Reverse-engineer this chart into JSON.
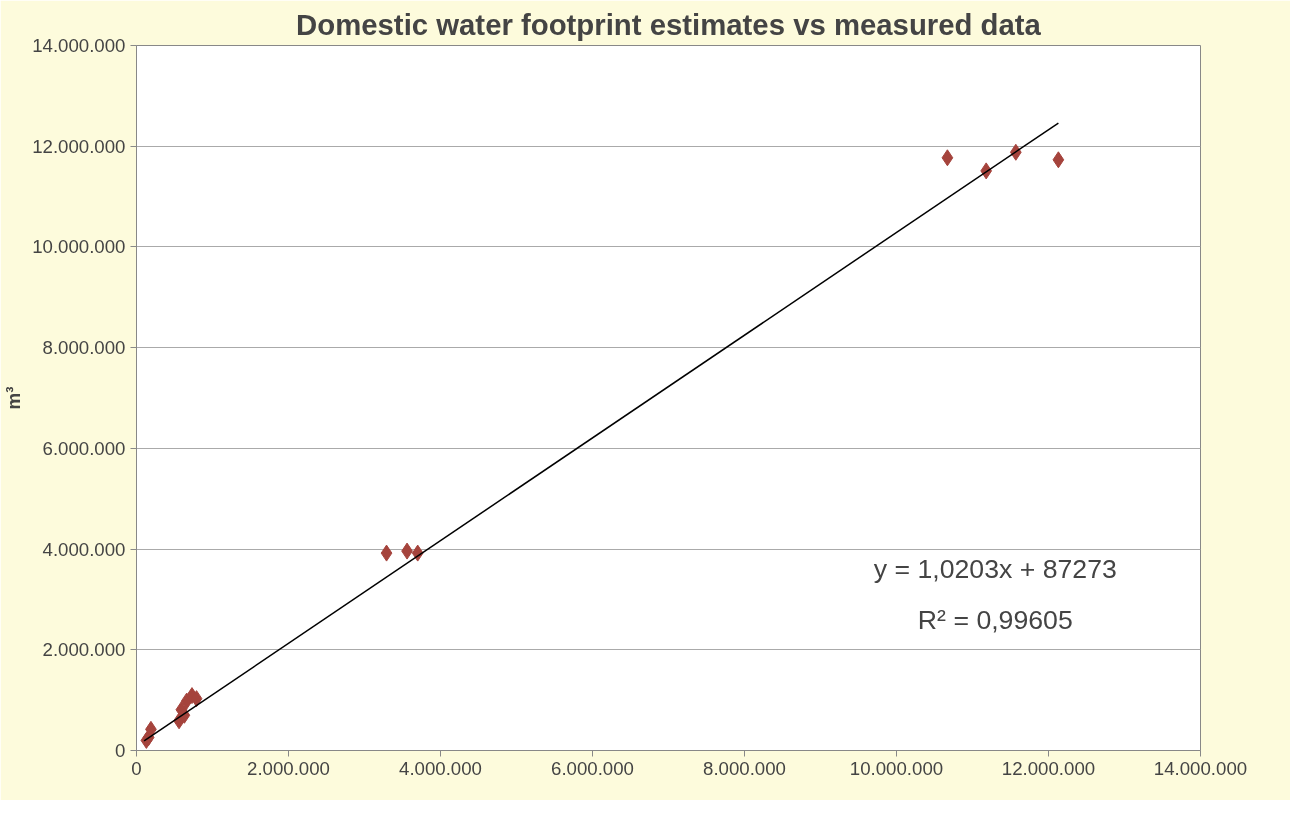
{
  "chart_data": {
    "type": "scatter",
    "title": "Domestic water footprint estimates vs measured data",
    "ylabel": "m³",
    "annotations": [
      "y = 1,0203x + 87273",
      "R² = 0,99605"
    ],
    "marker": "diamond",
    "grid": "y",
    "xlim": [
      0,
      14000000
    ],
    "ylim": [
      0,
      14000000
    ],
    "xticks": [
      0,
      {
        "value": 2000000,
        "label": "2.000.000"
      },
      {
        "value": 4000000,
        "label": "4.000.000"
      },
      {
        "value": 6000000,
        "label": "6.000.000"
      },
      {
        "value": 8000000,
        "label": "8.000.000"
      },
      {
        "value": 10000000,
        "label": "10.000.000"
      },
      {
        "value": 12000000,
        "label": "12.000.000"
      },
      {
        "value": 14000000,
        "label": "14.000.000"
      }
    ],
    "yticks": [
      0,
      {
        "value": 2000000,
        "label": "2.000.000"
      },
      {
        "value": 4000000,
        "label": "4.000.000"
      },
      {
        "value": 6000000,
        "label": "6.000.000"
      },
      {
        "value": 8000000,
        "label": "8.000.000"
      },
      {
        "value": 10000000,
        "label": "10.000.000"
      },
      {
        "value": 12000000,
        "label": "12.000.000"
      },
      {
        "value": 14000000,
        "label": "14.000.000"
      }
    ],
    "series": [
      {
        "color": "#a5433c",
        "x": [
          130000,
          160000,
          190000,
          560000,
          590000,
          630000,
          660000,
          730000,
          790000,
          3290000,
          3560000,
          3700000,
          10670000,
          11180000,
          11570000,
          12130000
        ],
        "values": [
          200000,
          260000,
          420000,
          590000,
          810000,
          700000,
          980000,
          1090000,
          1030000,
          3920000,
          3960000,
          3920000,
          11770000,
          11510000,
          11880000,
          11730000
        ]
      },
      {
        "type": "line",
        "marker": "none",
        "color": "#000000",
        "x": [
          100000,
          12130000
        ],
        "values": [
          190000,
          12460000
        ]
      }
    ]
  }
}
